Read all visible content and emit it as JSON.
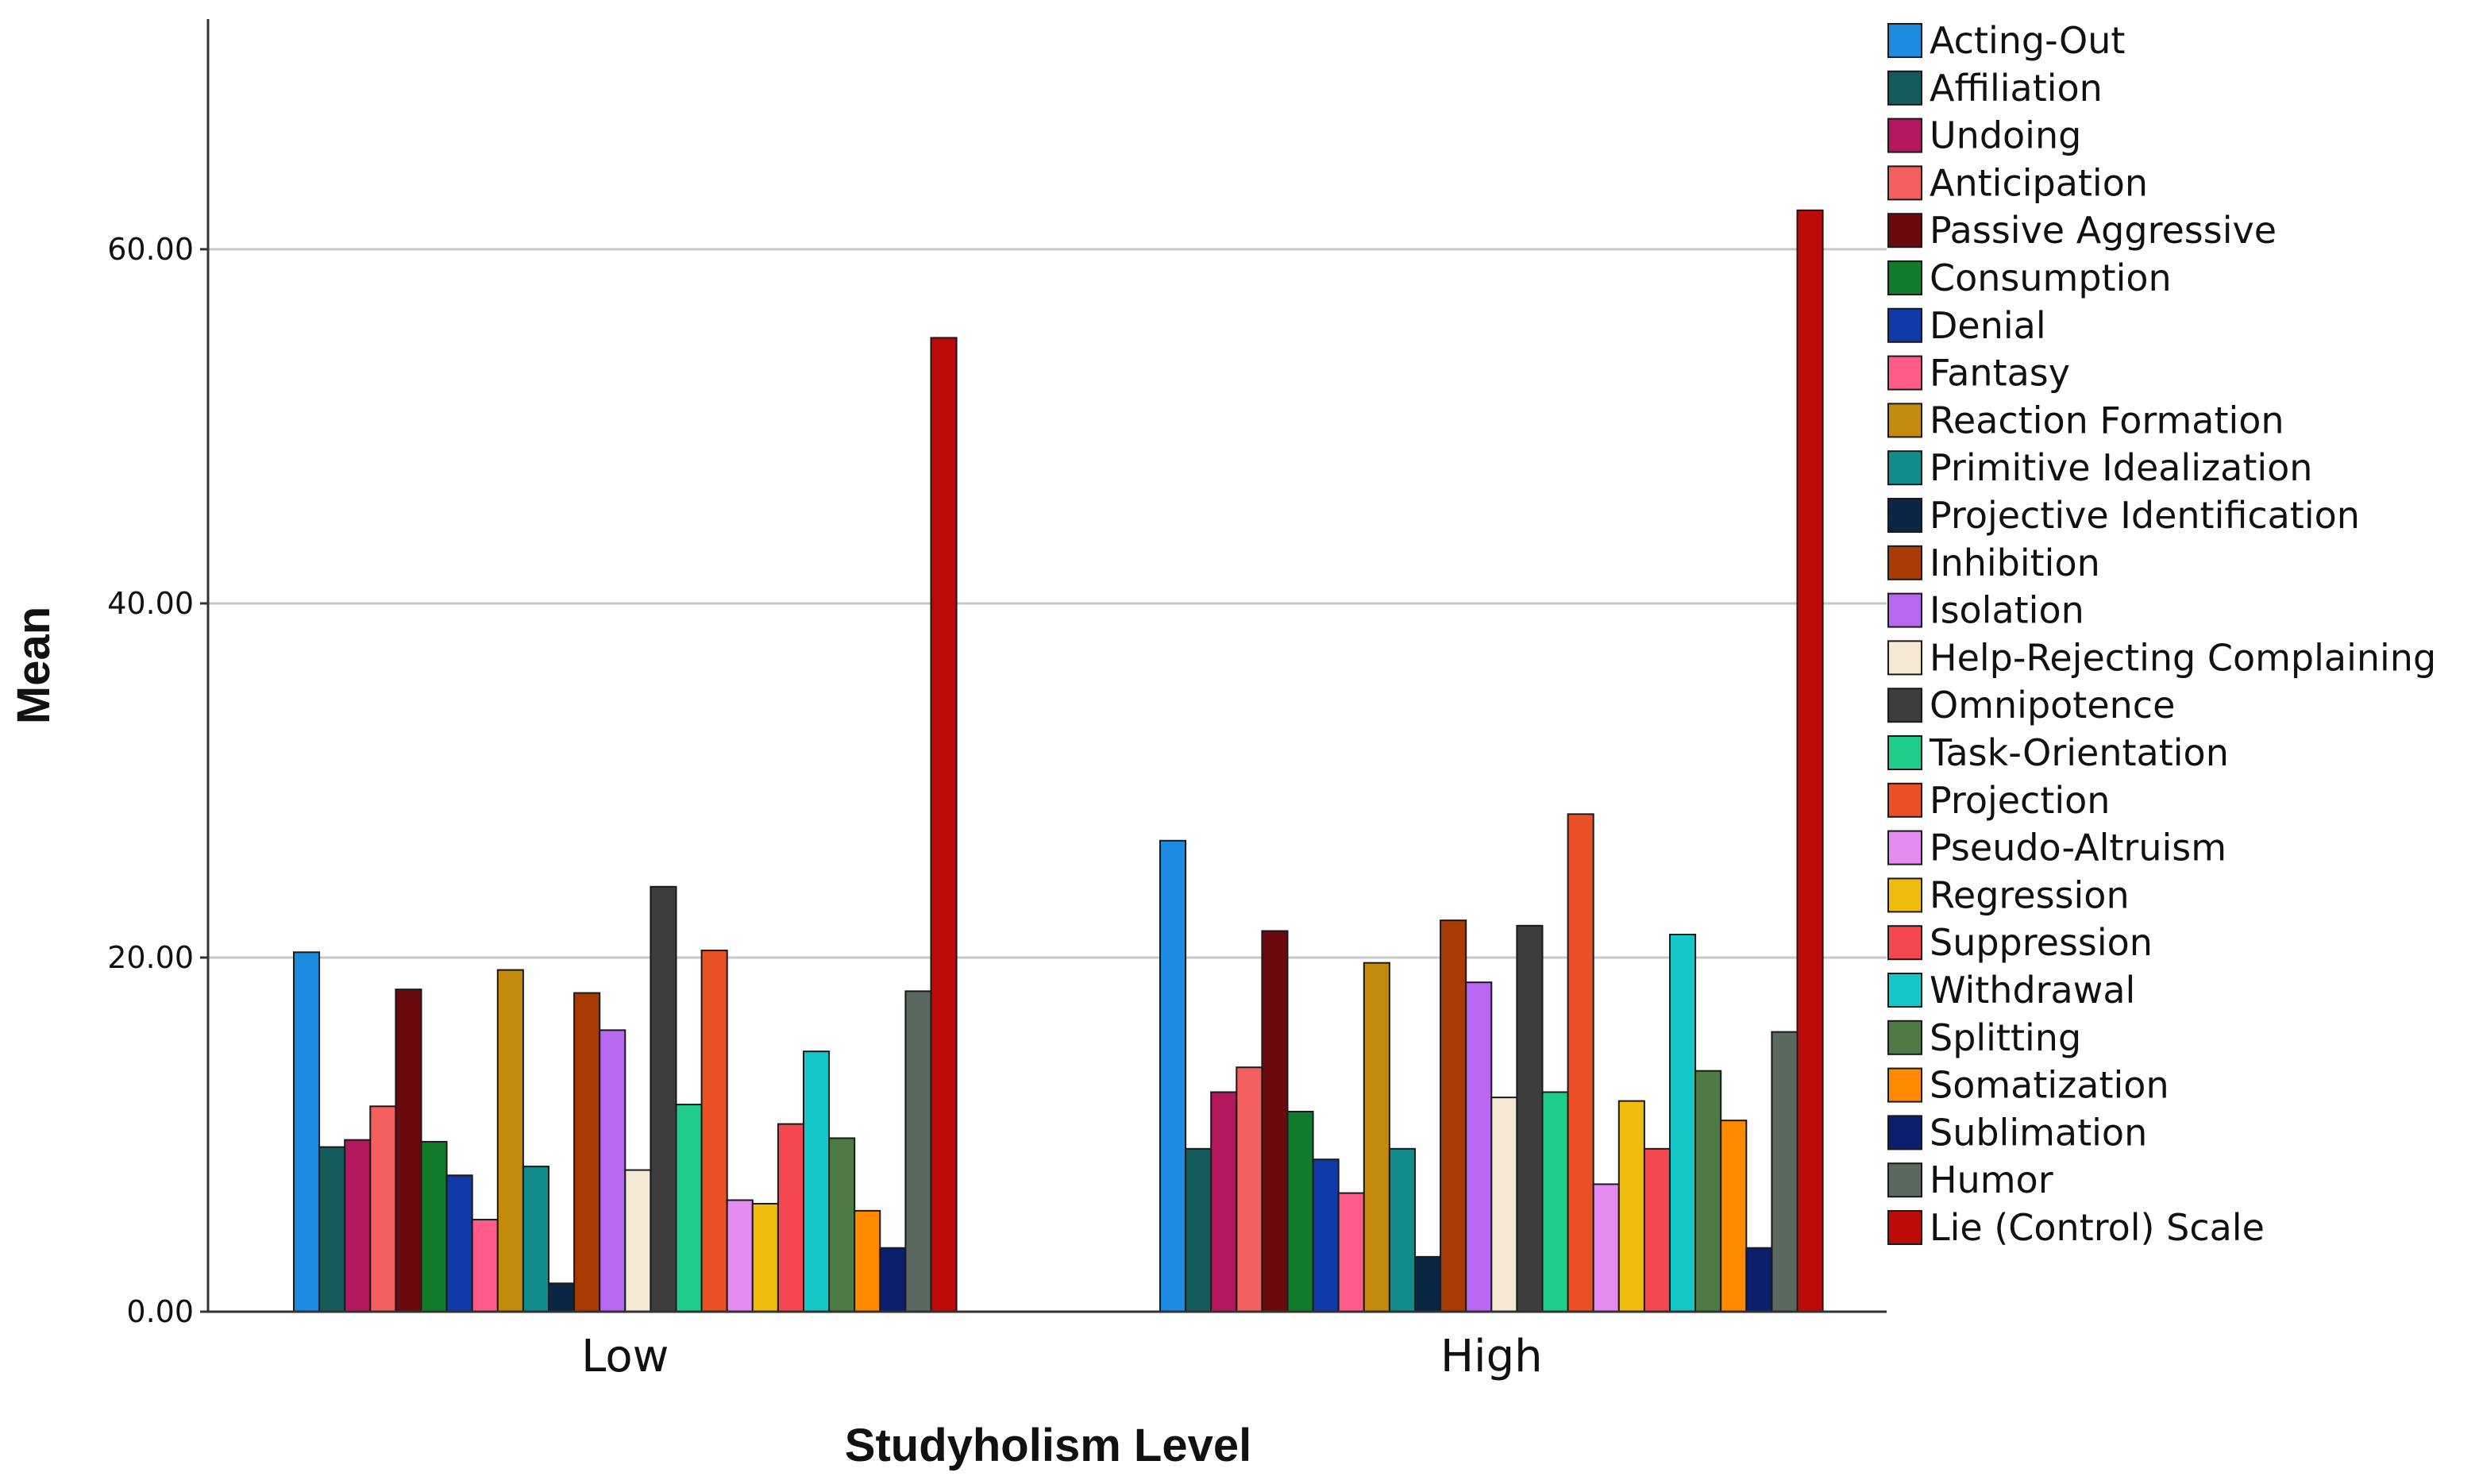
{
  "chart_data": {
    "type": "bar",
    "title": "",
    "xlabel": "Studyholism Level",
    "ylabel": "Mean",
    "ylim": [
      0,
      73
    ],
    "yticks": [
      0,
      20,
      40,
      60
    ],
    "ytick_labels": [
      "0.00",
      "20.00",
      "40.00",
      "60.00"
    ],
    "grid": true,
    "legend_position": "right",
    "categories": [
      "Low",
      "High"
    ],
    "series": [
      {
        "name": "Acting-Out",
        "color": "#1d8be0",
        "values": [
          20.3,
          26.6
        ]
      },
      {
        "name": "Affiliation",
        "color": "#165b5b",
        "values": [
          9.3,
          9.2
        ]
      },
      {
        "name": "Undoing",
        "color": "#b3185d",
        "values": [
          9.7,
          12.4
        ]
      },
      {
        "name": "Anticipation",
        "color": "#f25f5c",
        "values": [
          11.6,
          13.8
        ]
      },
      {
        "name": "Passive Aggressive",
        "color": "#6a0a0f",
        "values": [
          18.2,
          21.5
        ]
      },
      {
        "name": "Consumption",
        "color": "#127a2b",
        "values": [
          9.6,
          11.3
        ]
      },
      {
        "name": "Denial",
        "color": "#0f3aa8",
        "values": [
          7.7,
          8.6
        ]
      },
      {
        "name": "Fantasy",
        "color": "#ff5c8a",
        "values": [
          5.2,
          6.7
        ]
      },
      {
        "name": "Reaction Formation",
        "color": "#c48a0c",
        "values": [
          19.3,
          19.7
        ]
      },
      {
        "name": "Primitive Idealization",
        "color": "#118b8b",
        "values": [
          8.2,
          9.2
        ]
      },
      {
        "name": "Projective Identification",
        "color": "#0b2545",
        "values": [
          1.6,
          3.1
        ]
      },
      {
        "name": "Inhibition",
        "color": "#a83a06",
        "values": [
          18.0,
          22.1
        ]
      },
      {
        "name": "Isolation",
        "color": "#b767f0",
        "values": [
          15.9,
          18.6
        ]
      },
      {
        "name": "Help-Rejecting Complaining",
        "color": "#f3e8d3",
        "values": [
          8.0,
          12.1
        ]
      },
      {
        "name": "Omnipotence",
        "color": "#3d3d3d",
        "values": [
          24.0,
          21.8
        ]
      },
      {
        "name": "Task-Orientation",
        "color": "#1fcc8a",
        "values": [
          11.7,
          12.4
        ]
      },
      {
        "name": "Projection",
        "color": "#ea5028",
        "values": [
          20.4,
          28.1
        ]
      },
      {
        "name": "Pseudo-Altruism",
        "color": "#e48bf0",
        "values": [
          6.3,
          7.2
        ]
      },
      {
        "name": "Regression",
        "color": "#efbc0f",
        "values": [
          6.1,
          11.9
        ]
      },
      {
        "name": "Suppression",
        "color": "#f4474f",
        "values": [
          10.6,
          9.2
        ]
      },
      {
        "name": "Withdrawal",
        "color": "#16c7c7",
        "values": [
          14.7,
          21.3
        ]
      },
      {
        "name": "Splitting",
        "color": "#4e7b45",
        "values": [
          9.8,
          13.6
        ]
      },
      {
        "name": "Somatization",
        "color": "#ff8a00",
        "values": [
          5.7,
          10.8
        ]
      },
      {
        "name": "Sublimation",
        "color": "#0a1f6e",
        "values": [
          3.6,
          3.6
        ]
      },
      {
        "name": "Humor",
        "color": "#5a6860",
        "values": [
          18.1,
          15.8
        ]
      },
      {
        "name": "Lie (Control) Scale",
        "color": "#bf0a0a",
        "values": [
          55.0,
          62.2
        ]
      }
    ]
  }
}
